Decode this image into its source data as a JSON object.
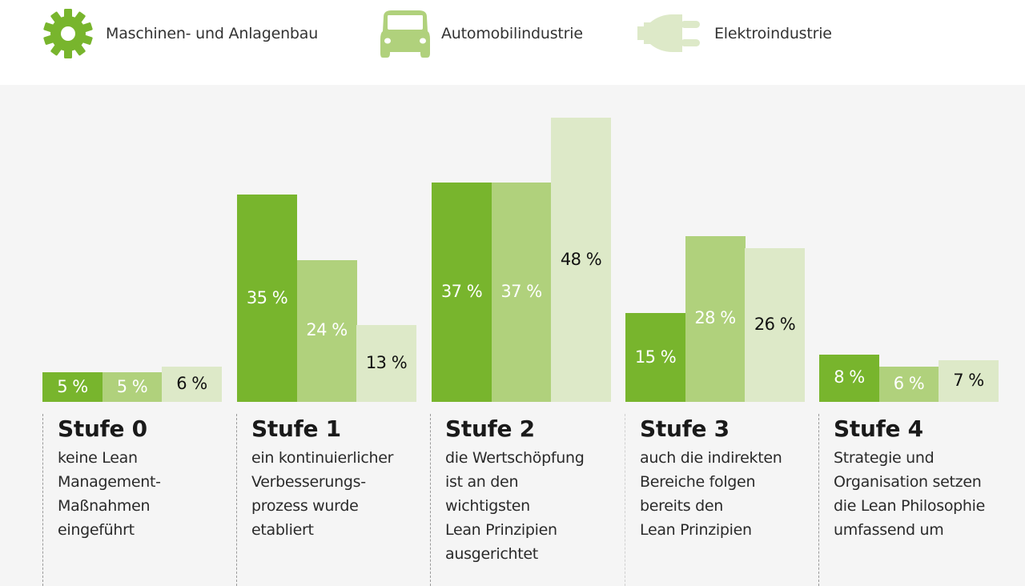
{
  "colors": {
    "maschinenbau": "#78b52d",
    "automobil": "#b0d17c",
    "elektro": "#dde9c8",
    "label_light": "#ffffff",
    "label_dark": "#111111"
  },
  "legend": [
    {
      "label": "Maschinen- und Anlagenbau",
      "icon": "gear-icon"
    },
    {
      "label": "Automobilindustrie",
      "icon": "car-icon"
    },
    {
      "label": "Elektroindustrie",
      "icon": "plug-icon"
    }
  ],
  "chart_data": {
    "type": "bar",
    "title": "",
    "xlabel": "",
    "ylabel": "",
    "ylim": [
      0,
      48
    ],
    "grid": false,
    "legend_position": "top",
    "categories": [
      "Stufe 0",
      "Stufe 1",
      "Stufe 2",
      "Stufe 3",
      "Stufe 4"
    ],
    "category_descriptions": [
      "keine Lean\nManagement-\nMaßnahmen\neingeführt",
      "ein kontinuierlicher\nVerbesserungs-\nprozess wurde\netabliert",
      "die Wertschöpfung\nist an den\nwichtigsten\nLean Prinzipien\nausgerichtet",
      "auch die indirekten\nBereiche folgen\nbereits den\nLean Prinzipien",
      "Strategie und\nOrganisation setzen\ndie Lean Philosophie\numfassend um"
    ],
    "series": [
      {
        "name": "Maschinen- und Anlagenbau",
        "values": [
          5,
          35,
          37,
          15,
          8
        ],
        "labels": [
          "5 %",
          "35 %",
          "37 %",
          "15 %",
          "8 %"
        ]
      },
      {
        "name": "Automobilindustrie",
        "values": [
          5,
          24,
          37,
          28,
          6
        ],
        "labels": [
          "5 %",
          "24 %",
          "37 %",
          "28 %",
          "6 %"
        ]
      },
      {
        "name": "Elektroindustrie",
        "values": [
          6,
          13,
          48,
          26,
          7
        ],
        "labels": [
          "6 %",
          "13 %",
          "48 %",
          "26 %",
          "7 %"
        ]
      }
    ]
  }
}
